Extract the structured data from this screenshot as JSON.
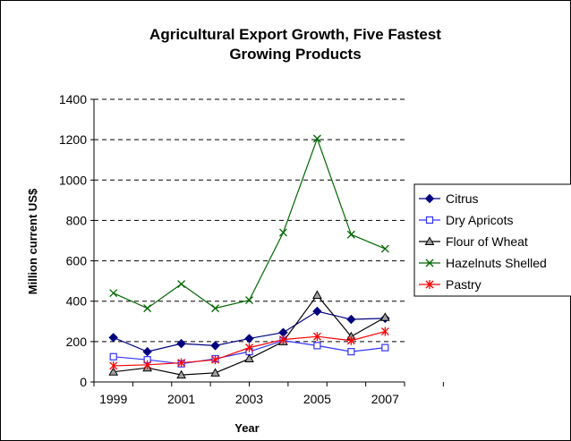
{
  "chart_data": {
    "type": "line",
    "title_lines": [
      "Agricultural Export Growth,  Five Fastest",
      "Growing Products"
    ],
    "xlabel": "Year",
    "ylabel": "Million current US$",
    "x": [
      1999,
      2000,
      2001,
      2002,
      2003,
      2004,
      2005,
      2006,
      2007
    ],
    "x_tick_labels": [
      "1999",
      "2001",
      "2003",
      "2005",
      "2007"
    ],
    "y_ticks": [
      0,
      200,
      400,
      600,
      800,
      1000,
      1200,
      1400
    ],
    "ylim": [
      0,
      1400
    ],
    "grid": "horizontal dashed",
    "legend_position": "right",
    "series": [
      {
        "name": "Citrus",
        "color": "#000080",
        "marker": "diamond",
        "values": [
          220,
          150,
          190,
          180,
          215,
          245,
          350,
          310,
          315
        ]
      },
      {
        "name": "Dry Apricots",
        "color": "#3333ff",
        "marker": "square",
        "values": [
          125,
          110,
          90,
          115,
          150,
          205,
          180,
          150,
          170
        ]
      },
      {
        "name": "Flour of Wheat",
        "color": "#000000",
        "marker": "triangle",
        "values": [
          50,
          70,
          35,
          45,
          115,
          200,
          430,
          225,
          320
        ]
      },
      {
        "name": "Hazelnuts Shelled",
        "color": "#006600",
        "marker": "x",
        "values": [
          440,
          365,
          485,
          365,
          405,
          740,
          1205,
          730,
          660
        ]
      },
      {
        "name": "Pastry",
        "color": "#ff0000",
        "marker": "star",
        "values": [
          80,
          85,
          95,
          110,
          170,
          210,
          225,
          205,
          250
        ]
      }
    ]
  }
}
